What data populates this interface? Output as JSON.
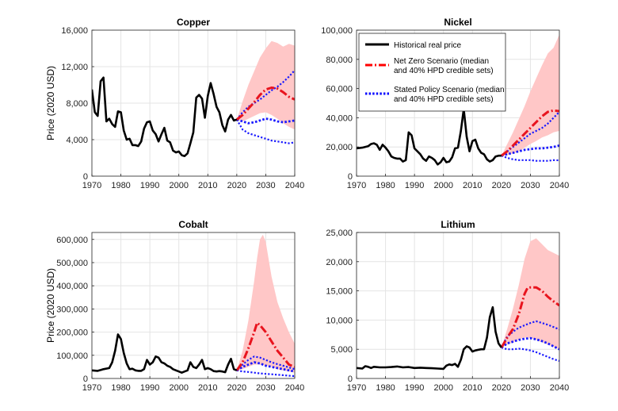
{
  "figure": {
    "ylabel": "Price (2020 USD)",
    "xlim": [
      1970,
      2040
    ],
    "xticks": [
      1970,
      1980,
      1990,
      2000,
      2010,
      2020,
      2030,
      2040
    ],
    "legend": {
      "placement": "top-left of Nickel panel",
      "entries": [
        {
          "key": "historical",
          "lines": [
            "Historical real price"
          ],
          "color": "#000000",
          "dash": "solid"
        },
        {
          "key": "netzero",
          "lines": [
            "Net Zero Scenario (median",
            "and 40% HPD credible sets)"
          ],
          "color": "#ff0000",
          "dash": "dashdot"
        },
        {
          "key": "stated",
          "lines": [
            "Stated Policy Scenario (median",
            "and 40% HPD credible sets)"
          ],
          "color": "#0000ff",
          "dash": "dotted"
        }
      ]
    },
    "colors": {
      "historical": "#000000",
      "netzero": "#e8141e",
      "stated": "#1a1aff",
      "band": "#ffc7c7",
      "grid": "#e4e4e4"
    }
  },
  "chart_data": [
    {
      "type": "line",
      "title": "Copper",
      "ylabel": "Price (2020 USD)",
      "ylim": [
        0,
        16000
      ],
      "yticks": [
        0,
        4000,
        8000,
        12000,
        16000
      ],
      "yticklabels": [
        "0",
        "4,000",
        "8,000",
        "12,000",
        "16,000"
      ],
      "historical": {
        "x": [
          1970,
          1971,
          1972,
          1973,
          1974,
          1975,
          1976,
          1977,
          1978,
          1979,
          1980,
          1981,
          1982,
          1983,
          1984,
          1985,
          1986,
          1987,
          1988,
          1989,
          1990,
          1991,
          1992,
          1993,
          1994,
          1995,
          1996,
          1997,
          1998,
          1999,
          2000,
          2001,
          2002,
          2003,
          2004,
          2005,
          2006,
          2007,
          2008,
          2009,
          2010,
          2011,
          2012,
          2013,
          2014,
          2015,
          2016,
          2017,
          2018,
          2019,
          2020
        ],
        "y": [
          9500,
          7000,
          6600,
          10400,
          10800,
          6000,
          6300,
          5700,
          5400,
          7100,
          7000,
          5000,
          4000,
          4100,
          3400,
          3400,
          3300,
          3800,
          5200,
          5900,
          6000,
          5000,
          4600,
          3800,
          4600,
          5300,
          3900,
          3700,
          2800,
          2600,
          2700,
          2300,
          2200,
          2500,
          3600,
          4800,
          8600,
          8900,
          8500,
          6400,
          8800,
          10200,
          9000,
          7600,
          7000,
          5600,
          4900,
          6200,
          6700,
          6100,
          6200
        ]
      },
      "netzero_median": {
        "x": [
          2020,
          2022,
          2024,
          2026,
          2028,
          2030,
          2032,
          2034,
          2036,
          2038,
          2040
        ],
        "y": [
          6200,
          6700,
          7400,
          8100,
          8900,
          9500,
          9700,
          9600,
          9200,
          8700,
          8400
        ]
      },
      "stated_median": {
        "x": [
          2020,
          2022,
          2024,
          2026,
          2028,
          2030,
          2032,
          2034,
          2036,
          2038,
          2040
        ],
        "y": [
          6200,
          6000,
          5800,
          5900,
          6100,
          6300,
          6200,
          6000,
          5900,
          6000,
          6100
        ]
      },
      "stated_upper": {
        "x": [
          2020,
          2022,
          2024,
          2026,
          2028,
          2030,
          2032,
          2034,
          2036,
          2038,
          2040
        ],
        "y": [
          6200,
          7000,
          7600,
          8000,
          8400,
          8900,
          9400,
          9800,
          10300,
          10900,
          11600
        ]
      },
      "stated_lower": {
        "x": [
          2020,
          2022,
          2024,
          2026,
          2028,
          2030,
          2032,
          2034,
          2036,
          2038,
          2040
        ],
        "y": [
          6200,
          5100,
          4700,
          4500,
          4300,
          4100,
          3900,
          3800,
          3700,
          3600,
          3700
        ]
      },
      "band_upper": {
        "x": [
          2020,
          2022,
          2024,
          2026,
          2028,
          2030,
          2032,
          2034,
          2036,
          2038,
          2040
        ],
        "y": [
          6200,
          8200,
          10000,
          11500,
          13000,
          14000,
          14800,
          14600,
          14200,
          14500,
          14300
        ]
      },
      "band_lower": {
        "x": [
          2020,
          2022,
          2024,
          2026,
          2028,
          2030,
          2032,
          2034,
          2036,
          2038,
          2040
        ],
        "y": [
          6200,
          6000,
          6300,
          6600,
          6900,
          7000,
          6700,
          6300,
          5800,
          5400,
          5100
        ]
      }
    },
    {
      "type": "line",
      "title": "Nickel",
      "ylabel": "",
      "ylim": [
        0,
        100000
      ],
      "yticks": [
        0,
        20000,
        40000,
        60000,
        80000,
        100000
      ],
      "yticklabels": [
        "0",
        "20,000",
        "40,000",
        "60,000",
        "80,000",
        "100,000"
      ],
      "historical": {
        "x": [
          1970,
          1972,
          1974,
          1975,
          1976,
          1977,
          1978,
          1979,
          1980,
          1981,
          1982,
          1983,
          1984,
          1985,
          1986,
          1987,
          1988,
          1989,
          1990,
          1991,
          1992,
          1993,
          1994,
          1995,
          1996,
          1997,
          1998,
          1999,
          2000,
          2001,
          2002,
          2003,
          2004,
          2005,
          2006,
          2007,
          2008,
          2009,
          2010,
          2011,
          2012,
          2013,
          2014,
          2015,
          2016,
          2017,
          2018,
          2019,
          2020
        ],
        "y": [
          19000,
          19500,
          20500,
          22000,
          22500,
          21500,
          18000,
          21500,
          19500,
          17000,
          13500,
          12500,
          12000,
          12000,
          10000,
          11000,
          30000,
          28000,
          19000,
          17000,
          15000,
          12000,
          10500,
          13500,
          12500,
          11000,
          8000,
          9500,
          12500,
          9500,
          10000,
          13000,
          19000,
          19500,
          31000,
          46000,
          27000,
          17000,
          24000,
          25000,
          19000,
          16000,
          15000,
          11500,
          10000,
          11000,
          13500,
          14000,
          14000
        ]
      },
      "netzero_median": {
        "x": [
          2020,
          2022,
          2024,
          2026,
          2028,
          2030,
          2032,
          2034,
          2036,
          2038,
          2040
        ],
        "y": [
          14000,
          17000,
          21000,
          25000,
          29000,
          33000,
          37000,
          41000,
          44000,
          45000,
          44500
        ]
      },
      "stated_median": {
        "x": [
          2020,
          2022,
          2024,
          2026,
          2028,
          2030,
          2032,
          2034,
          2036,
          2038,
          2040
        ],
        "y": [
          14000,
          15000,
          16000,
          17000,
          18000,
          18500,
          19000,
          19000,
          19500,
          20000,
          21000
        ]
      },
      "stated_upper": {
        "x": [
          2020,
          2022,
          2024,
          2026,
          2028,
          2030,
          2032,
          2034,
          2036,
          2038,
          2040
        ],
        "y": [
          14000,
          17000,
          20000,
          23000,
          26000,
          29000,
          31000,
          33000,
          36000,
          40000,
          44000
        ]
      },
      "stated_lower": {
        "x": [
          2020,
          2022,
          2024,
          2026,
          2028,
          2030,
          2032,
          2034,
          2036,
          2038,
          2040
        ],
        "y": [
          14000,
          12500,
          11500,
          11000,
          11000,
          11000,
          10500,
          10500,
          10500,
          11000,
          10800
        ]
      },
      "band_upper": {
        "x": [
          2020,
          2022,
          2024,
          2026,
          2028,
          2030,
          2032,
          2034,
          2036,
          2038,
          2040
        ],
        "y": [
          14000,
          22000,
          30000,
          39000,
          48000,
          58000,
          67000,
          76000,
          84000,
          88000,
          97000
        ]
      },
      "band_lower": {
        "x": [
          2020,
          2022,
          2024,
          2026,
          2028,
          2030,
          2032,
          2034,
          2036,
          2038,
          2040
        ],
        "y": [
          14000,
          14500,
          15500,
          17000,
          19500,
          22000,
          24000,
          26500,
          28000,
          30000,
          31000
        ]
      }
    },
    {
      "type": "line",
      "title": "Cobalt",
      "ylabel": "Price (2020 USD)",
      "ylim": [
        0,
        630000
      ],
      "yticks": [
        0,
        100000,
        200000,
        300000,
        400000,
        500000,
        600000
      ],
      "yticklabels": [
        "0",
        "100,000",
        "200,000",
        "300,000",
        "400,000",
        "500,000",
        "600,000"
      ],
      "historical": {
        "x": [
          1970,
          1972,
          1974,
          1976,
          1977,
          1978,
          1979,
          1980,
          1981,
          1982,
          1983,
          1984,
          1985,
          1986,
          1987,
          1988,
          1989,
          1990,
          1991,
          1992,
          1993,
          1994,
          1995,
          1996,
          1997,
          1998,
          1999,
          2000,
          2001,
          2002,
          2003,
          2004,
          2005,
          2006,
          2007,
          2008,
          2009,
          2010,
          2011,
          2012,
          2013,
          2014,
          2015,
          2016,
          2017,
          2018,
          2019,
          2020
        ],
        "y": [
          35000,
          33000,
          40000,
          45000,
          70000,
          120000,
          190000,
          170000,
          110000,
          65000,
          40000,
          42000,
          35000,
          33000,
          33000,
          40000,
          80000,
          60000,
          70000,
          95000,
          90000,
          70000,
          65000,
          55000,
          50000,
          40000,
          35000,
          30000,
          25000,
          30000,
          35000,
          70000,
          50000,
          45000,
          60000,
          80000,
          40000,
          45000,
          40000,
          32000,
          30000,
          32000,
          30000,
          27000,
          60000,
          85000,
          40000,
          35000
        ]
      },
      "netzero_median": {
        "x": [
          2020,
          2022,
          2024,
          2026,
          2027,
          2028,
          2030,
          2032,
          2034,
          2036,
          2038,
          2040
        ],
        "y": [
          35000,
          70000,
          130000,
          200000,
          240000,
          230000,
          200000,
          160000,
          120000,
          90000,
          60000,
          50000
        ]
      },
      "stated_median": {
        "x": [
          2020,
          2022,
          2024,
          2026,
          2028,
          2030,
          2032,
          2034,
          2036,
          2038,
          2040
        ],
        "y": [
          35000,
          50000,
          60000,
          70000,
          65000,
          55000,
          50000,
          45000,
          40000,
          35000,
          30000
        ]
      },
      "stated_upper": {
        "x": [
          2020,
          2022,
          2024,
          2026,
          2028,
          2030,
          2032,
          2034,
          2036,
          2038,
          2040
        ],
        "y": [
          35000,
          60000,
          80000,
          95000,
          90000,
          80000,
          70000,
          62000,
          55000,
          48000,
          40000
        ]
      },
      "stated_lower": {
        "x": [
          2020,
          2022,
          2024,
          2026,
          2028,
          2030,
          2032,
          2034,
          2036,
          2038,
          2040
        ],
        "y": [
          35000,
          30000,
          28000,
          25000,
          22000,
          20000,
          18000,
          16000,
          14000,
          12000,
          10000
        ]
      },
      "band_upper": {
        "x": [
          2020,
          2022,
          2024,
          2026,
          2027,
          2028,
          2029,
          2030,
          2032,
          2034,
          2036,
          2038,
          2040
        ],
        "y": [
          35000,
          120000,
          250000,
          420000,
          520000,
          600000,
          620000,
          590000,
          440000,
          330000,
          260000,
          200000,
          150000
        ]
      },
      "band_lower": {
        "x": [
          2020,
          2022,
          2024,
          2026,
          2028,
          2030,
          2032,
          2034,
          2036,
          2038,
          2040
        ],
        "y": [
          35000,
          40000,
          50000,
          60000,
          60000,
          55000,
          50000,
          40000,
          35000,
          30000,
          25000
        ]
      }
    },
    {
      "type": "line",
      "title": "Lithium",
      "ylabel": "",
      "ylim": [
        0,
        25000
      ],
      "yticks": [
        0,
        5000,
        10000,
        15000,
        20000,
        25000
      ],
      "yticklabels": [
        "0",
        "5,000",
        "10,000",
        "15,000",
        "20,000",
        "25,000"
      ],
      "historical": {
        "x": [
          1970,
          1972,
          1973,
          1974,
          1975,
          1976,
          1978,
          1980,
          1982,
          1984,
          1986,
          1988,
          1990,
          1992,
          1994,
          1996,
          1998,
          2000,
          2001,
          2002,
          2003,
          2004,
          2005,
          2006,
          2007,
          2008,
          2009,
          2010,
          2011,
          2012,
          2013,
          2014,
          2015,
          2016,
          2017,
          2018,
          2019,
          2020
        ],
        "y": [
          1800,
          1700,
          2100,
          2000,
          1800,
          2000,
          1900,
          1900,
          1950,
          2050,
          1900,
          1950,
          1800,
          1850,
          1800,
          1750,
          1700,
          1650,
          2200,
          2400,
          2300,
          2500,
          2000,
          3200,
          5000,
          5500,
          5300,
          4600,
          4800,
          4900,
          5000,
          5000,
          7000,
          10500,
          12200,
          8000,
          6000,
          5300
        ]
      },
      "netzero_median": {
        "x": [
          2020,
          2022,
          2024,
          2026,
          2028,
          2029,
          2030,
          2032,
          2034,
          2036,
          2038,
          2040
        ],
        "y": [
          5300,
          7000,
          8500,
          11000,
          14500,
          15500,
          15600,
          15600,
          15000,
          14000,
          13200,
          12500
        ]
      },
      "stated_median": {
        "x": [
          2020,
          2022,
          2024,
          2026,
          2028,
          2030,
          2032,
          2034,
          2036,
          2038,
          2040
        ],
        "y": [
          5300,
          6000,
          6300,
          6600,
          6800,
          6900,
          6700,
          6400,
          6000,
          5500,
          5000
        ]
      },
      "stated_upper": {
        "x": [
          2020,
          2022,
          2024,
          2026,
          2028,
          2030,
          2032,
          2034,
          2036,
          2038,
          2040
        ],
        "y": [
          5300,
          7200,
          8000,
          8700,
          9100,
          9500,
          9800,
          9500,
          9200,
          8800,
          8400
        ]
      },
      "stated_lower": {
        "x": [
          2020,
          2022,
          2024,
          2026,
          2028,
          2030,
          2032,
          2034,
          2036,
          2038,
          2040
        ],
        "y": [
          5300,
          5000,
          5000,
          5100,
          5000,
          4800,
          4500,
          4100,
          3700,
          3300,
          3000
        ]
      },
      "band_upper": {
        "x": [
          2020,
          2022,
          2024,
          2026,
          2028,
          2030,
          2032,
          2034,
          2036,
          2038,
          2040
        ],
        "y": [
          5300,
          8500,
          12000,
          16000,
          20500,
          23500,
          24000,
          23000,
          22000,
          21500,
          21000
        ]
      },
      "band_lower": {
        "x": [
          2020,
          2022,
          2024,
          2026,
          2028,
          2030,
          2032,
          2034,
          2036,
          2038,
          2040
        ],
        "y": [
          5300,
          5800,
          6200,
          6700,
          7000,
          7000,
          6600,
          6200,
          5800,
          5400,
          5000
        ]
      }
    }
  ]
}
